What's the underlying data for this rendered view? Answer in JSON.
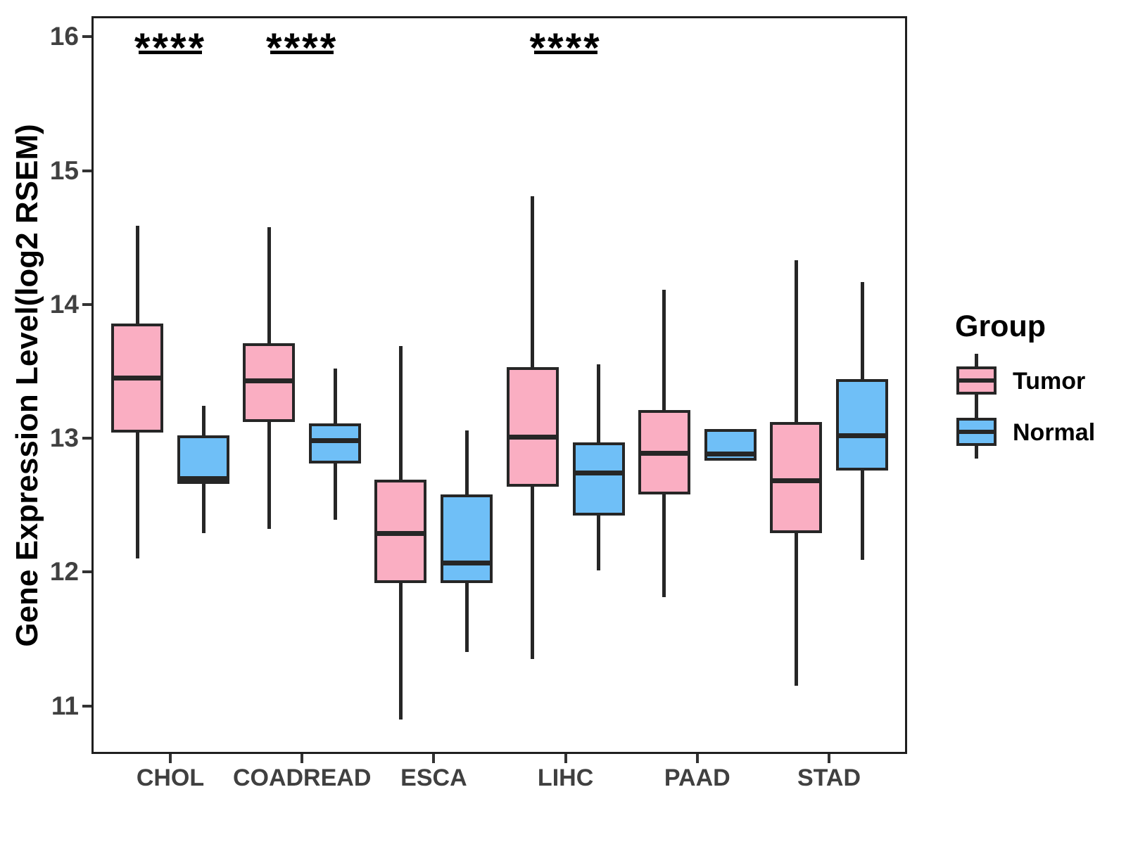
{
  "chart_data": {
    "type": "boxplot",
    "title": "",
    "xlabel": "",
    "ylabel": "Gene Expression Level(log2 RSEM)",
    "ylim": [
      10.64,
      16.155
    ],
    "yticks": [
      16,
      15,
      14,
      13,
      12,
      11
    ],
    "categories": [
      "CHOL",
      "COADREAD",
      "ESCA",
      "LIHC",
      "PAAD",
      "STAD"
    ],
    "legend_title": "Group",
    "groups": [
      {
        "name": "Tumor",
        "color": "#FAAEC2"
      },
      {
        "name": "Normal",
        "color": "#6FBFF7"
      }
    ],
    "line_color": "#262626",
    "axis_text_color": "#404040",
    "series": [
      {
        "group": "Tumor",
        "boxes": [
          {
            "category": "CHOL",
            "low": 12.1,
            "q1": 13.04,
            "median": 13.45,
            "q3": 13.86,
            "high": 14.59
          },
          {
            "category": "COADREAD",
            "low": 12.32,
            "q1": 13.12,
            "median": 13.43,
            "q3": 13.71,
            "high": 14.58
          },
          {
            "category": "ESCA",
            "low": 10.9,
            "q1": 11.92,
            "median": 12.29,
            "q3": 12.69,
            "high": 13.69
          },
          {
            "category": "LIHC",
            "low": 11.35,
            "q1": 12.64,
            "median": 13.01,
            "q3": 13.53,
            "high": 14.81
          },
          {
            "category": "PAAD",
            "low": 11.81,
            "q1": 12.58,
            "median": 12.89,
            "q3": 13.21,
            "high": 14.11
          },
          {
            "category": "STAD",
            "low": 11.15,
            "q1": 12.29,
            "median": 12.68,
            "q3": 13.12,
            "high": 14.33
          }
        ]
      },
      {
        "group": "Normal",
        "boxes": [
          {
            "category": "CHOL",
            "low": 12.29,
            "q1": 12.66,
            "median": 12.7,
            "q3": 13.02,
            "high": 13.24
          },
          {
            "category": "COADREAD",
            "low": 12.39,
            "q1": 12.81,
            "median": 12.98,
            "q3": 13.11,
            "high": 13.52
          },
          {
            "category": "ESCA",
            "low": 11.4,
            "q1": 11.92,
            "median": 12.07,
            "q3": 12.58,
            "high": 13.06
          },
          {
            "category": "LIHC",
            "low": 12.01,
            "q1": 12.42,
            "median": 12.74,
            "q3": 12.97,
            "high": 13.55
          },
          {
            "category": "PAAD",
            "low": 12.83,
            "q1": 12.83,
            "median": 12.88,
            "q3": 13.07,
            "high": 13.07
          },
          {
            "category": "STAD",
            "low": 12.09,
            "q1": 12.76,
            "median": 13.02,
            "q3": 13.44,
            "high": 14.17
          }
        ]
      }
    ],
    "significance": [
      {
        "category": "CHOL",
        "label": "****"
      },
      {
        "category": "COADREAD",
        "label": "****"
      },
      {
        "category": "LIHC",
        "label": "****"
      }
    ]
  }
}
